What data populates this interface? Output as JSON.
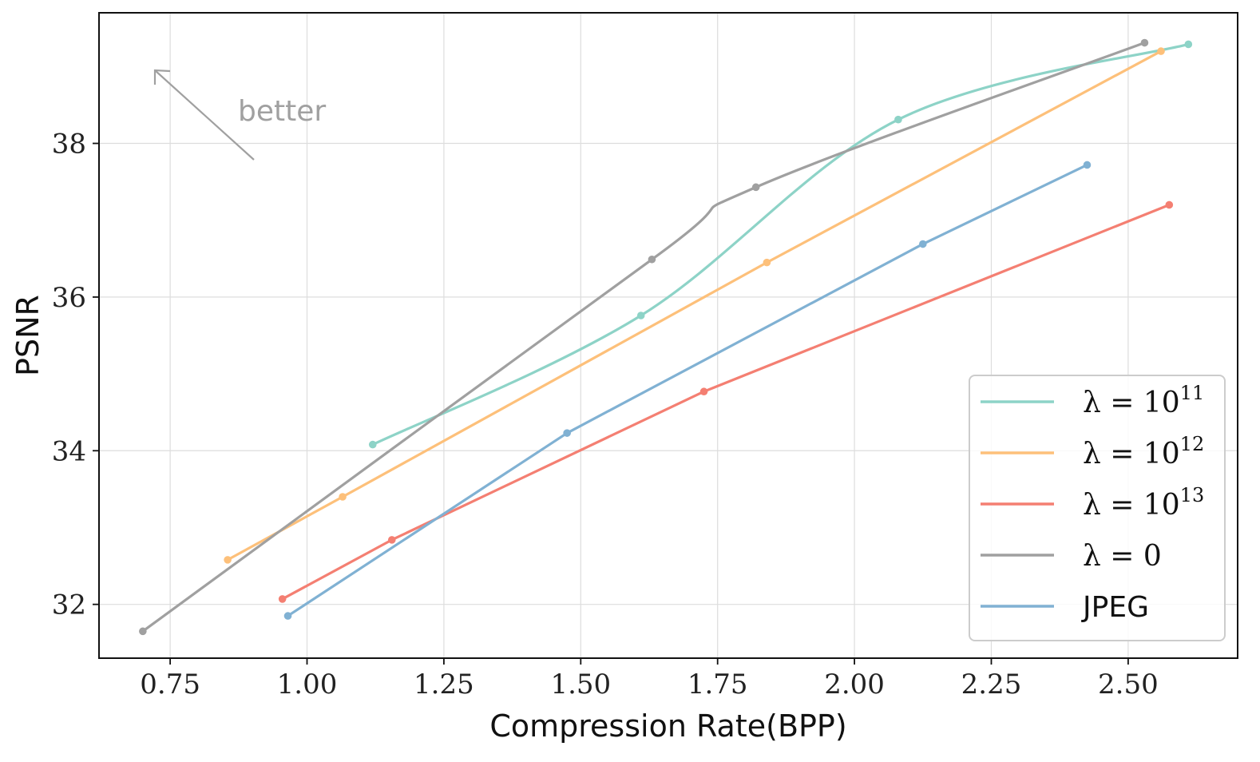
{
  "chart_data": {
    "type": "line",
    "title": "",
    "xlabel": "Compression Rate(BPP)",
    "ylabel": "PSNR",
    "xlim": [
      0.62,
      2.7
    ],
    "ylim": [
      31.3,
      39.7
    ],
    "xticks": [
      0.75,
      1.0,
      1.25,
      1.5,
      1.75,
      2.0,
      2.25,
      2.5
    ],
    "xtick_labels": [
      "0.75",
      "1.00",
      "1.25",
      "1.50",
      "1.75",
      "2.00",
      "2.25",
      "2.50"
    ],
    "yticks": [
      32,
      34,
      36,
      38
    ],
    "ytick_labels": [
      "32",
      "34",
      "36",
      "38"
    ],
    "grid": true,
    "legend_position": "bottom-right",
    "annotation": {
      "text": "better",
      "arrow": "up-left"
    },
    "series": [
      {
        "name": "λ = 10¹¹",
        "legend_base": "λ = 10",
        "legend_exp": "11",
        "color": "#8dd3c7",
        "smooth": true,
        "x": [
          1.12,
          1.61,
          2.08,
          2.61
        ],
        "y": [
          34.08,
          35.76,
          38.31,
          39.29
        ]
      },
      {
        "name": "λ = 10¹²",
        "legend_base": "λ = 10",
        "legend_exp": "12",
        "color": "#fdc07a",
        "smooth": false,
        "x": [
          0.855,
          1.065,
          1.84,
          2.56
        ],
        "y": [
          32.58,
          33.4,
          36.45,
          39.2
        ]
      },
      {
        "name": "λ = 10¹³",
        "legend_base": "λ = 10",
        "legend_exp": "13",
        "color": "#f47f72",
        "smooth": false,
        "x": [
          0.955,
          1.155,
          1.725,
          2.575
        ],
        "y": [
          32.07,
          32.84,
          34.77,
          37.2
        ]
      },
      {
        "name": "λ = 0",
        "legend_base": "λ = 0",
        "legend_exp": "",
        "color": "#a0a0a0",
        "smooth": true,
        "x": [
          0.7,
          1.63,
          1.82,
          2.53
        ],
        "y": [
          31.65,
          36.49,
          37.43,
          39.31
        ]
      },
      {
        "name": "JPEG",
        "legend_base": "JPEG",
        "legend_exp": "",
        "color": "#80b1d3",
        "smooth": false,
        "x": [
          0.965,
          1.475,
          2.125,
          2.425
        ],
        "y": [
          31.85,
          34.23,
          36.69,
          37.72
        ]
      }
    ]
  }
}
